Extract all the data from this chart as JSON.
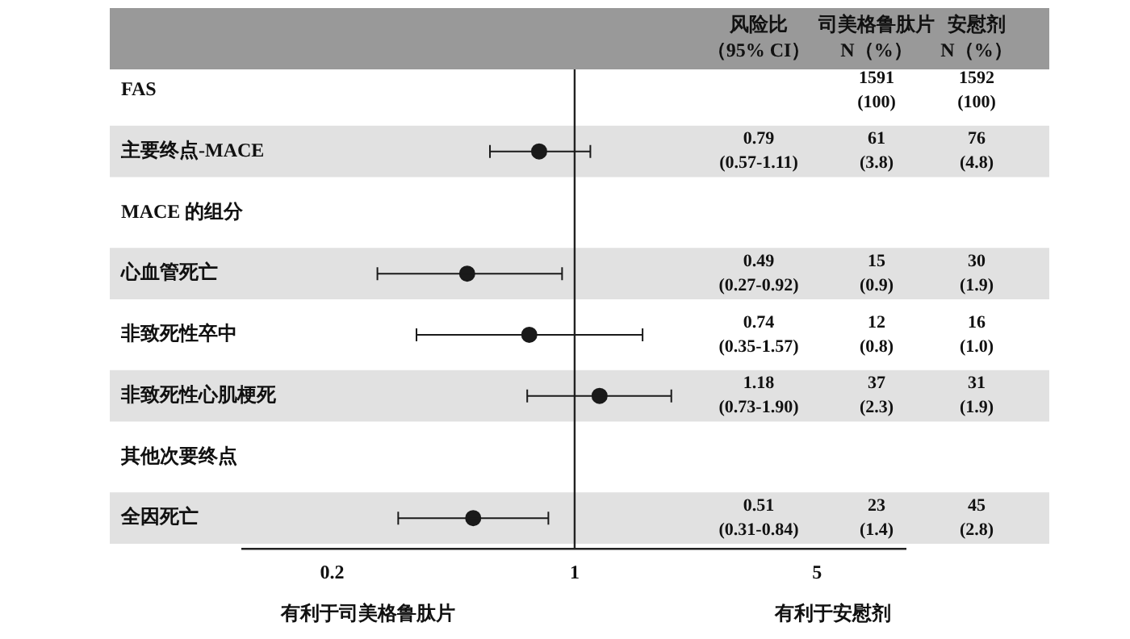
{
  "chart_data": {
    "type": "scatter",
    "orientation": "horizontal",
    "log": "x",
    "categories": [
      "FAS",
      "主要终点-MACE",
      "MACE 的组分",
      "心血管死亡",
      "非致死性卒中",
      "非致死性心肌梗死",
      "其他次要终点",
      "全因死亡"
    ],
    "values": [
      null,
      0.79,
      null,
      0.49,
      0.74,
      1.18,
      null,
      0.51
    ],
    "errors": [
      null,
      [
        0.57,
        1.11
      ],
      null,
      [
        0.27,
        0.92
      ],
      [
        0.35,
        1.57
      ],
      [
        0.73,
        1.9
      ],
      null,
      [
        0.31,
        0.84
      ]
    ],
    "color": "#1a1a1a",
    "marker": "circle",
    "xlim": [
      0.11,
      9
    ],
    "xticks": [
      0.2,
      1,
      5
    ],
    "ref_lines": [
      {
        "axis": "x",
        "value": 1,
        "color": "#222222"
      }
    ],
    "bands": [
      {
        "axis": "y",
        "from": "主要终点-MACE",
        "to": "主要终点-MACE",
        "color": "#e1e1e1"
      },
      {
        "axis": "y",
        "from": "心血管死亡",
        "to": "心血管死亡",
        "color": "#e1e1e1"
      },
      {
        "axis": "y",
        "from": "非致死性心肌梗死",
        "to": "非致死性心肌梗死",
        "color": "#e1e1e1"
      },
      {
        "axis": "y",
        "from": "全因死亡",
        "to": "全因死亡",
        "color": "#e1e1e1"
      }
    ],
    "annotations": [
      "风险比",
      "（95% CI）",
      "司美格鲁肽片",
      "N（%）",
      "安慰剂",
      "N（%）",
      "有利于司美格鲁肽片",
      "有利于安慰剂",
      "1591\n(100)",
      "1592\n(100)",
      "0.79\n(0.57-1.11)",
      "61\n(3.8)",
      "76\n(4.8)",
      "0.49\n(0.27-0.92)",
      "15\n(0.9)",
      "30\n(1.9)",
      "0.74\n(0.35-1.57)",
      "12\n(0.8)",
      "16\n(1.0)",
      "1.18\n(0.73-1.90)",
      "37\n(2.3)",
      "31\n(1.9)",
      "0.51\n(0.31-0.84)",
      "23\n(1.4)",
      "45\n(2.8)"
    ],
    "grid": false,
    "legend": false
  }
}
